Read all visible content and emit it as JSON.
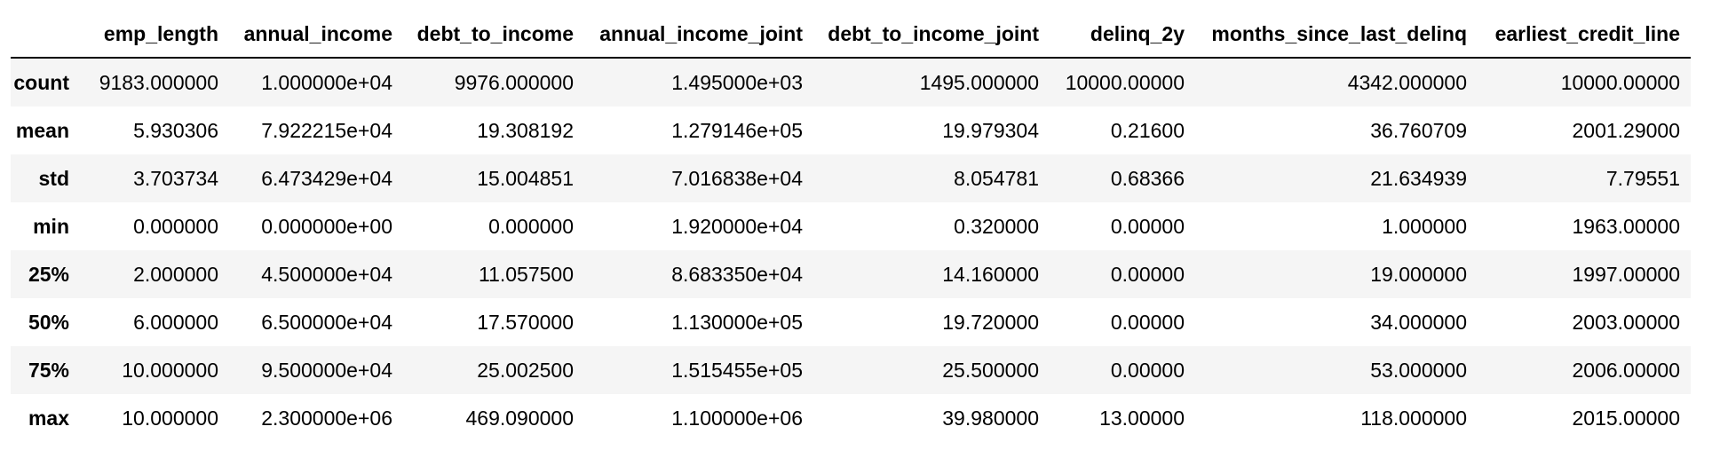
{
  "table": {
    "index_header": "",
    "columns": [
      "emp_length",
      "annual_income",
      "debt_to_income",
      "annual_income_joint",
      "debt_to_income_joint",
      "delinq_2y",
      "months_since_last_delinq",
      "earliest_credit_line"
    ],
    "rows": [
      {
        "label": "count",
        "cells": [
          "9183.000000",
          "1.000000e+04",
          "9976.000000",
          "1.495000e+03",
          "1495.000000",
          "10000.00000",
          "4342.000000",
          "10000.00000"
        ]
      },
      {
        "label": "mean",
        "cells": [
          "5.930306",
          "7.922215e+04",
          "19.308192",
          "1.279146e+05",
          "19.979304",
          "0.21600",
          "36.760709",
          "2001.29000"
        ]
      },
      {
        "label": "std",
        "cells": [
          "3.703734",
          "6.473429e+04",
          "15.004851",
          "7.016838e+04",
          "8.054781",
          "0.68366",
          "21.634939",
          "7.79551"
        ]
      },
      {
        "label": "min",
        "cells": [
          "0.000000",
          "0.000000e+00",
          "0.000000",
          "1.920000e+04",
          "0.320000",
          "0.00000",
          "1.000000",
          "1963.00000"
        ]
      },
      {
        "label": "25%",
        "cells": [
          "2.000000",
          "4.500000e+04",
          "11.057500",
          "8.683350e+04",
          "14.160000",
          "0.00000",
          "19.000000",
          "1997.00000"
        ]
      },
      {
        "label": "50%",
        "cells": [
          "6.000000",
          "6.500000e+04",
          "17.570000",
          "1.130000e+05",
          "19.720000",
          "0.00000",
          "34.000000",
          "2003.00000"
        ]
      },
      {
        "label": "75%",
        "cells": [
          "10.000000",
          "9.500000e+04",
          "25.002500",
          "1.515455e+05",
          "25.500000",
          "0.00000",
          "53.000000",
          "2006.00000"
        ]
      },
      {
        "label": "max",
        "cells": [
          "10.000000",
          "2.300000e+06",
          "469.090000",
          "1.100000e+06",
          "39.980000",
          "13.00000",
          "118.000000",
          "2015.00000"
        ]
      }
    ]
  }
}
